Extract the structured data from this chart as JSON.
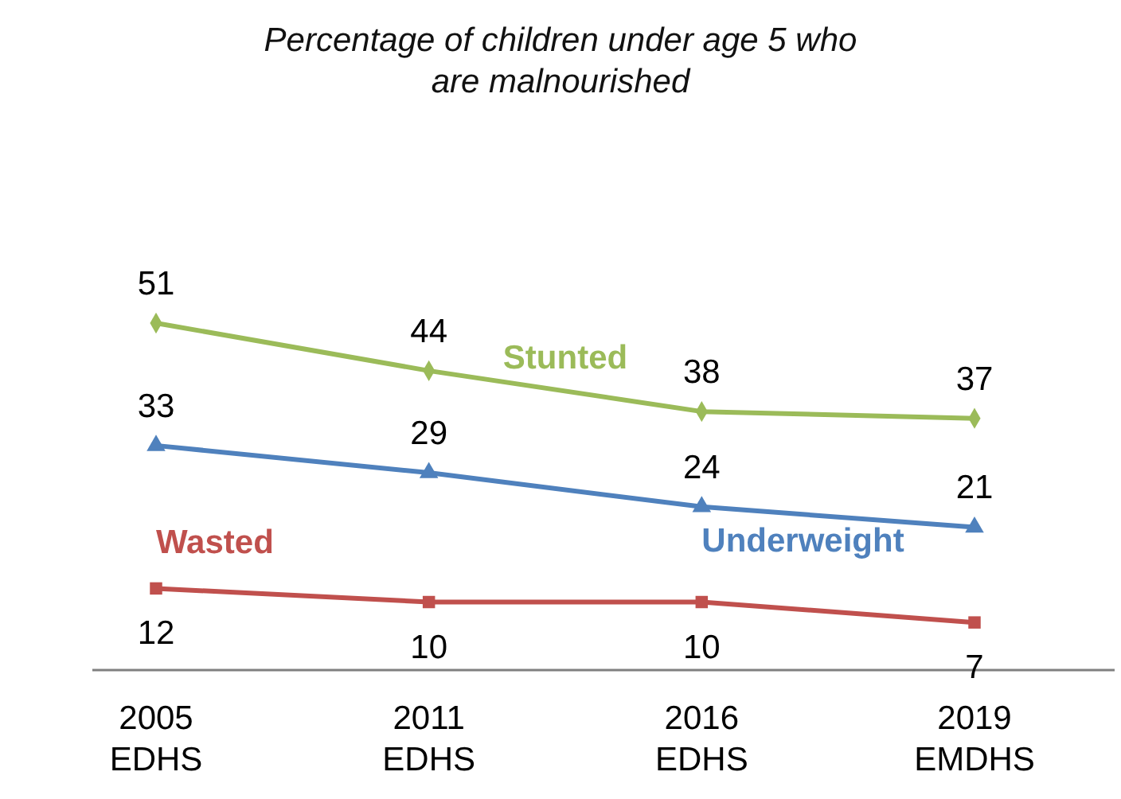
{
  "chart_data": {
    "type": "line",
    "title": "Percentage of children under age 5 who are malnourished",
    "categories": [
      "2005 EDHS",
      "2011 EDHS",
      "2016 EDHS",
      "2019 EMDHS"
    ],
    "series": [
      {
        "name": "Stunted",
        "color": "#9bbb59",
        "marker": "diamond",
        "values": [
          51,
          44,
          38,
          37
        ]
      },
      {
        "name": "Underweight",
        "color": "#4f81bd",
        "marker": "triangle",
        "values": [
          33,
          29,
          24,
          21
        ]
      },
      {
        "name": "Wasted",
        "color": "#c0504d",
        "marker": "square",
        "values": [
          12,
          10,
          10,
          7
        ]
      }
    ],
    "data_labels": true
  }
}
